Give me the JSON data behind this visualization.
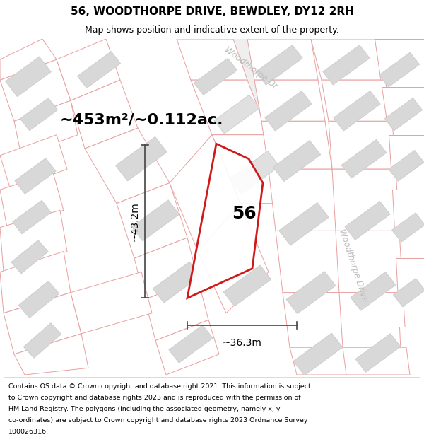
{
  "title": "56, WOODTHORPE DRIVE, BEWDLEY, DY12 2RH",
  "subtitle": "Map shows position and indicative extent of the property.",
  "area_label": "~453m²/~0.112ac.",
  "number_label": "56",
  "width_label": "~36.3m",
  "height_label": "~43.2m",
  "footer_lines": [
    "Contains OS data © Crown copyright and database right 2021. This information is subject",
    "to Crown copyright and database rights 2023 and is reproduced with the permission of",
    "HM Land Registry. The polygons (including the associated geometry, namely x, y",
    "co-ordinates) are subject to Crown copyright and database rights 2023 Ordnance Survey",
    "100026316."
  ],
  "road_label_top": "Woodthorpe Dr",
  "road_label_right": "Woodthorpe Drive",
  "plot_color": "#cc0000",
  "parcel_edge": "#e8a0a0",
  "parcel_face": "#ffffff",
  "building_face": "#d8d8d8",
  "building_edge": "#cccccc",
  "road_label_color": "#bbbbbb",
  "map_bg": "#f8f8f8",
  "title_fontsize": 11,
  "subtitle_fontsize": 9,
  "area_fontsize": 16,
  "number_fontsize": 18,
  "measure_fontsize": 10,
  "footer_fontsize": 6.8,
  "road_fontsize": 8.5
}
